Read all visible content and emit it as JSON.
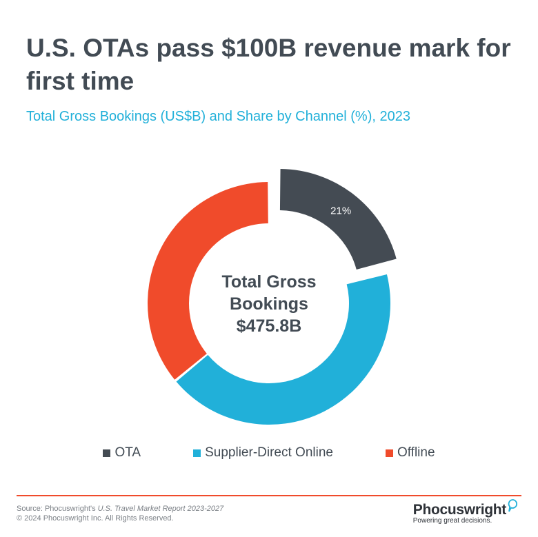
{
  "header": {
    "title": "U.S. OTAs pass $100B revenue mark for first time",
    "subtitle": "Total Gross Bookings (US$B) and Share by Channel (%), 2023"
  },
  "chart_data": {
    "type": "donut",
    "center_label": [
      "Total Gross",
      "Bookings",
      "$475.8B"
    ],
    "total": "$475.8B",
    "series": [
      {
        "name": "OTA",
        "value": 21,
        "label": "21%",
        "color": "#444b53",
        "exploded": true
      },
      {
        "name": "Supplier-Direct Online",
        "value": 43,
        "label": "",
        "color": "#21b0d9",
        "exploded": false
      },
      {
        "name": "Offline",
        "value": 36,
        "label": "",
        "color": "#f04b2b",
        "exploded": false
      }
    ],
    "legend_position": "bottom"
  },
  "legend": [
    {
      "label": "OTA",
      "color": "#444b53"
    },
    {
      "label": "Supplier-Direct Online",
      "color": "#21b0d9"
    },
    {
      "label": "Offline",
      "color": "#f04b2b"
    }
  ],
  "footer": {
    "source_prefix": "Source: Phocuswright's ",
    "source_title": "U.S. Travel Market Report 2023-2027",
    "copyright": "© 2024 Phocuswright Inc. All Rights Reserved."
  },
  "brand": {
    "name": "Phocuswright",
    "tagline": "Powering great decisions.",
    "accent": "#21b0d9"
  }
}
